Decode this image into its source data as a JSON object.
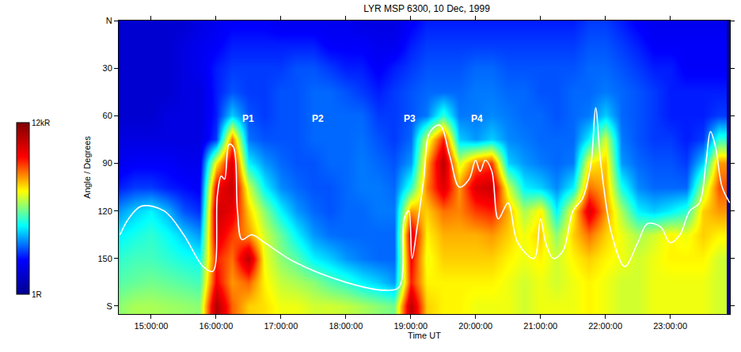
{
  "chart_data": {
    "type": "heatmap",
    "title": "LYR MSP 6300, 10 Dec, 1999",
    "x_label": "Time UT",
    "y_label": "Angle / Degrees",
    "grid": false,
    "xlim": [
      14.5,
      23.92
    ],
    "xticks": [
      {
        "value": 15,
        "label": "15:00:00"
      },
      {
        "value": 16,
        "label": "16:00:00"
      },
      {
        "value": 17,
        "label": "17:00:00"
      },
      {
        "value": 18,
        "label": "18:00:00"
      },
      {
        "value": 19,
        "label": "19:00:00"
      },
      {
        "value": 20,
        "label": "20:00:00"
      },
      {
        "value": 21,
        "label": "21:00:00"
      },
      {
        "value": 22,
        "label": "22:00:00"
      },
      {
        "value": 23,
        "label": "23:00:00"
      }
    ],
    "ylim": [
      185,
      0
    ],
    "yticks": [
      {
        "value": 0,
        "label": "N"
      },
      30,
      60,
      90,
      120,
      150,
      {
        "value": 180,
        "label": "S"
      }
    ],
    "colorbar": {
      "range": [
        1,
        12000
      ],
      "log": true,
      "ticks": [
        {
          "value": 1,
          "label": "1R"
        },
        {
          "value": 12000,
          "label": "12kR"
        }
      ],
      "colors": [
        "#00008f",
        "#0000ff",
        "#00ffff",
        "#ffff00",
        "#ff0000",
        "#800000"
      ]
    },
    "x": [
      14.5,
      14.75,
      15,
      15.25,
      15.5,
      15.75,
      16,
      16.25,
      16.5,
      16.75,
      17,
      17.25,
      17.5,
      17.75,
      18,
      18.25,
      18.5,
      18.75,
      19,
      19.25,
      19.5,
      19.75,
      20,
      20.25,
      20.5,
      20.75,
      21,
      21.25,
      21.5,
      21.75,
      22,
      22.25,
      22.5,
      22.75,
      23,
      23.25,
      23.5,
      23.75
    ],
    "y": [
      0,
      15,
      30,
      45,
      60,
      75,
      90,
      105,
      120,
      135,
      150,
      165,
      180
    ],
    "cells": [
      [
        3,
        3,
        3,
        3,
        3,
        4,
        5,
        8,
        20,
        40,
        60,
        80,
        120
      ],
      [
        3,
        3,
        3,
        3,
        3,
        4,
        6,
        10,
        30,
        50,
        70,
        90,
        150
      ],
      [
        3,
        3,
        3,
        3,
        3,
        4,
        6,
        10,
        40,
        60,
        70,
        100,
        150
      ],
      [
        3,
        3,
        3,
        3,
        4,
        4,
        6,
        8,
        25,
        45,
        60,
        90,
        140
      ],
      [
        3,
        4,
        4,
        4,
        4,
        4,
        5,
        7,
        12,
        30,
        50,
        80,
        130
      ],
      [
        4,
        5,
        5,
        4,
        4,
        4,
        5,
        6,
        9,
        20,
        45,
        70,
        120
      ],
      [
        5,
        6,
        8,
        8,
        8,
        10,
        300,
        2000,
        4000,
        3000,
        1500,
        2000,
        6000
      ],
      [
        6,
        8,
        10,
        12,
        30,
        800,
        3000,
        4000,
        2500,
        1200,
        800,
        600,
        900
      ],
      [
        6,
        8,
        10,
        10,
        12,
        15,
        40,
        200,
        400,
        600,
        5000,
        900,
        400
      ],
      [
        6,
        8,
        10,
        10,
        10,
        12,
        20,
        40,
        120,
        200,
        250,
        300,
        350
      ],
      [
        5,
        8,
        10,
        12,
        12,
        12,
        14,
        18,
        40,
        90,
        120,
        180,
        250
      ],
      [
        5,
        8,
        12,
        12,
        12,
        12,
        12,
        14,
        20,
        40,
        80,
        150,
        250
      ],
      [
        5,
        8,
        12,
        14,
        14,
        14,
        12,
        12,
        14,
        20,
        40,
        120,
        200
      ],
      [
        5,
        6,
        10,
        14,
        14,
        14,
        14,
        12,
        12,
        15,
        30,
        80,
        200
      ],
      [
        5,
        6,
        8,
        12,
        14,
        14,
        14,
        14,
        14,
        14,
        20,
        60,
        180
      ],
      [
        4,
        6,
        8,
        10,
        14,
        15,
        16,
        16,
        14,
        14,
        16,
        40,
        150
      ],
      [
        4,
        5,
        6,
        8,
        10,
        12,
        14,
        16,
        16,
        14,
        14,
        30,
        120
      ],
      [
        4,
        5,
        8,
        10,
        10,
        10,
        12,
        14,
        16,
        14,
        14,
        20,
        100
      ],
      [
        6,
        8,
        10,
        12,
        12,
        14,
        20,
        60,
        600,
        3000,
        2000,
        1500,
        5000
      ],
      [
        8,
        10,
        12,
        14,
        16,
        200,
        500,
        700,
        400,
        300,
        250,
        300,
        400
      ],
      [
        8,
        10,
        12,
        14,
        60,
        1500,
        5000,
        3000,
        800,
        500,
        400,
        300,
        300
      ],
      [
        8,
        10,
        12,
        14,
        16,
        30,
        200,
        600,
        700,
        500,
        400,
        300,
        300
      ],
      [
        8,
        10,
        14,
        16,
        16,
        20,
        800,
        3000,
        1200,
        500,
        400,
        300,
        250
      ],
      [
        8,
        10,
        14,
        16,
        18,
        30,
        1200,
        4000,
        1500,
        600,
        400,
        300,
        250
      ],
      [
        8,
        10,
        12,
        14,
        16,
        18,
        30,
        200,
        500,
        400,
        300,
        250,
        250
      ],
      [
        8,
        10,
        12,
        14,
        14,
        16,
        20,
        40,
        150,
        250,
        250,
        200,
        200
      ],
      [
        8,
        10,
        12,
        12,
        14,
        14,
        16,
        30,
        300,
        400,
        300,
        250,
        250
      ],
      [
        8,
        10,
        12,
        12,
        12,
        14,
        14,
        18,
        40,
        120,
        200,
        200,
        250
      ],
      [
        8,
        10,
        12,
        14,
        14,
        14,
        16,
        40,
        300,
        400,
        300,
        250,
        250
      ],
      [
        10,
        12,
        14,
        14,
        16,
        40,
        300,
        800,
        3000,
        800,
        400,
        300,
        300
      ],
      [
        10,
        12,
        14,
        16,
        30,
        200,
        400,
        500,
        600,
        400,
        300,
        250,
        250
      ],
      [
        8,
        10,
        12,
        14,
        14,
        16,
        20,
        50,
        150,
        250,
        250,
        200,
        200
      ],
      [
        6,
        8,
        10,
        12,
        12,
        12,
        14,
        18,
        40,
        150,
        200,
        200,
        200
      ],
      [
        5,
        6,
        8,
        10,
        10,
        10,
        12,
        14,
        30,
        200,
        250,
        250,
        250
      ],
      [
        5,
        6,
        8,
        8,
        8,
        10,
        12,
        14,
        40,
        300,
        300,
        250,
        250
      ],
      [
        5,
        6,
        6,
        8,
        8,
        8,
        10,
        14,
        60,
        250,
        300,
        250,
        250
      ],
      [
        5,
        6,
        6,
        8,
        8,
        10,
        30,
        150,
        400,
        400,
        300,
        250,
        250
      ],
      [
        5,
        6,
        6,
        8,
        10,
        60,
        600,
        1000,
        600,
        300,
        200,
        200,
        200
      ]
    ],
    "boundary": {
      "color": "#ffffff",
      "x": [
        14.52,
        14.65,
        14.85,
        15.2,
        15.5,
        15.8,
        15.95,
        16.02,
        16.08,
        16.13,
        16.2,
        16.27,
        16.33,
        16.4,
        16.55,
        16.75,
        17.2,
        18.0,
        18.6,
        18.82,
        18.9,
        18.97,
        19.02,
        19.1,
        19.2,
        19.3,
        19.45,
        19.6,
        19.75,
        19.9,
        20.0,
        20.07,
        20.15,
        20.25,
        20.35,
        20.5,
        20.65,
        20.9,
        21.0,
        21.08,
        21.2,
        21.35,
        21.5,
        21.65,
        21.78,
        21.85,
        21.93,
        22.1,
        22.3,
        22.5,
        22.65,
        22.85,
        23.0,
        23.15,
        23.3,
        23.45,
        23.55,
        23.62,
        23.7,
        23.8,
        23.92
      ],
      "y": [
        135,
        125,
        117,
        120,
        135,
        155,
        158,
        110,
        98,
        100,
        78,
        80,
        120,
        138,
        135,
        140,
        152,
        165,
        170,
        168,
        125,
        120,
        150,
        130,
        100,
        70,
        66,
        85,
        105,
        100,
        88,
        95,
        88,
        95,
        125,
        115,
        140,
        150,
        125,
        140,
        150,
        145,
        120,
        112,
        90,
        55,
        90,
        135,
        155,
        140,
        128,
        130,
        140,
        135,
        120,
        115,
        90,
        70,
        80,
        105,
        115
      ]
    },
    "annotations": [
      {
        "text": "P1",
        "x": 16.5,
        "y": 62
      },
      {
        "text": "P2",
        "x": 17.57,
        "y": 62
      },
      {
        "text": "P3",
        "x": 18.98,
        "y": 62
      },
      {
        "text": "P4",
        "x": 20.02,
        "y": 62
      }
    ]
  }
}
